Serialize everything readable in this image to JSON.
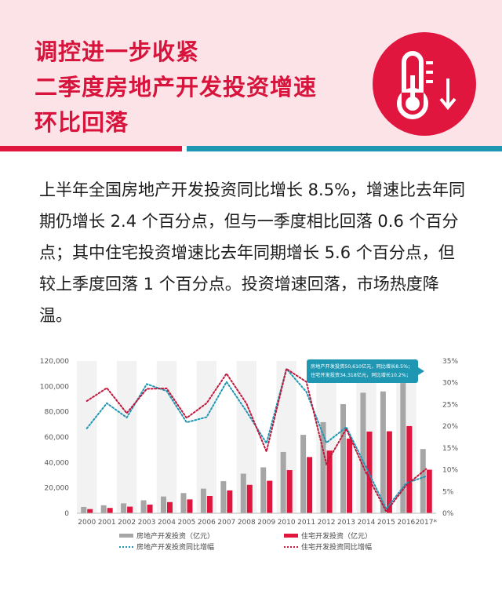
{
  "header": {
    "title_lines": [
      "调控进一步收紧",
      "二季度房地产开发投资增速",
      "环比回落"
    ]
  },
  "paragraph": "上半年全国房地产开发投资同比增长 8.5%，增速比去年同期仍增长 2.4 个百分点，但与一季度相比回落 0.6 个百分点；其中住宅投资增速比去年同期增长 5.6 个百分点，但较上季度回落 1 个百分点。投资增速回落，市场热度降温。",
  "icon": {
    "name": "thermometer-down-icon",
    "color": "#e0163f"
  },
  "colors": {
    "accent_red": "#e0163f",
    "accent_teal": "#1f97b3",
    "header_bg": "#fbe3e8",
    "gray_bar": "#a6a6a6"
  },
  "chart_data": {
    "type": "bar+line",
    "categories": [
      "2000",
      "2001",
      "2002",
      "2003",
      "2004",
      "2005",
      "2006",
      "2007",
      "2008",
      "2009",
      "2010",
      "2011",
      "2012",
      "2013",
      "2014",
      "2015",
      "2016",
      "2017*"
    ],
    "series": [
      {
        "name": "房地产开发投资（亿元）",
        "type": "bar",
        "axis": "left",
        "color": "#a6a6a6",
        "values": [
          5000,
          6300,
          7800,
          10200,
          13200,
          15900,
          19400,
          25300,
          31200,
          36200,
          48300,
          61800,
          71800,
          86000,
          95000,
          96000,
          102600,
          50610
        ]
      },
      {
        "name": "住宅开发投资（亿元）",
        "type": "bar",
        "axis": "left",
        "color": "#e0163f",
        "values": [
          3300,
          4200,
          5200,
          6800,
          8800,
          10900,
          13600,
          18000,
          22400,
          25600,
          34000,
          44300,
          49400,
          58900,
          64400,
          64600,
          68700,
          34318
        ]
      },
      {
        "name": "房地产开发投资同比增幅",
        "type": "line",
        "axis": "right",
        "style": "dotted",
        "color": "#1f97b3",
        "values": [
          19.5,
          25.3,
          22.0,
          29.7,
          28.1,
          20.9,
          22.1,
          30.2,
          23.4,
          16.1,
          33.2,
          27.9,
          16.2,
          19.8,
          10.5,
          1.0,
          6.9,
          8.5
        ]
      },
      {
        "name": "住宅开发投资同比增幅",
        "type": "line",
        "axis": "right",
        "style": "dotted",
        "color": "#c1173c",
        "values": [
          25.8,
          28.8,
          23.0,
          28.6,
          28.7,
          21.9,
          25.3,
          32.1,
          25.2,
          14.2,
          33.2,
          30.2,
          11.4,
          19.4,
          9.2,
          0.4,
          6.4,
          10.2
        ]
      }
    ],
    "ylim_left": [
      0,
      120000
    ],
    "yticks_left": [
      "0",
      "20,000",
      "40,000",
      "60,000",
      "80,000",
      "100,000",
      "120,000"
    ],
    "ylim_right": [
      0,
      35
    ],
    "yticks_right": [
      "0%",
      "5%",
      "10%",
      "15%",
      "20%",
      "25%",
      "30%",
      "35%"
    ],
    "annotation": [
      "房地产开发投资50,610亿元，同比增长8.5%；",
      "住宅开发投资34,318亿元，同比增长10.2%；"
    ],
    "legend": "bottom",
    "grid": false
  }
}
